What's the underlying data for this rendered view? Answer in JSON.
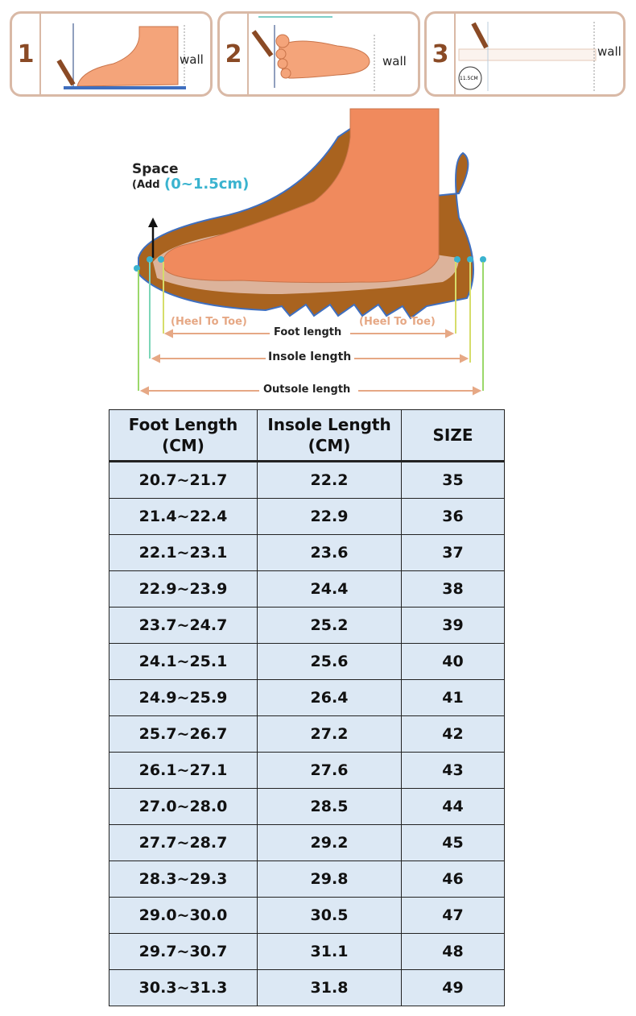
{
  "steps": [
    {
      "number": "1",
      "wall_label": "wall"
    },
    {
      "number": "2",
      "wall_label": "wall"
    },
    {
      "number": "3",
      "wall_label": "wall",
      "ruler_badge": "11.5CM"
    }
  ],
  "diagram": {
    "space_label": "Space",
    "add_label": "(Add",
    "add_value": "(0~1.5cm)",
    "heel_to_toe_left": "(Heel To Toe)",
    "heel_to_toe_right": "(Heel To Toe)",
    "foot_length": "Foot length",
    "insole_length": "Insole length",
    "outsole_length": "Outsole length",
    "accent_color": "#3ab3cf"
  },
  "table": {
    "headers": [
      {
        "line1": "Foot Length",
        "line2": "(CM)"
      },
      {
        "line1": "Insole Length",
        "line2": "(CM)"
      },
      {
        "line1": "SIZE",
        "line2": ""
      }
    ],
    "rows": [
      [
        "20.7~21.7",
        "22.2",
        "35"
      ],
      [
        "21.4~22.4",
        "22.9",
        "36"
      ],
      [
        "22.1~23.1",
        "23.6",
        "37"
      ],
      [
        "22.9~23.9",
        "24.4",
        "38"
      ],
      [
        "23.7~24.7",
        "25.2",
        "39"
      ],
      [
        "24.1~25.1",
        "25.6",
        "40"
      ],
      [
        "24.9~25.9",
        "26.4",
        "41"
      ],
      [
        "25.7~26.7",
        "27.2",
        "42"
      ],
      [
        "26.1~27.1",
        "27.6",
        "43"
      ],
      [
        "27.0~28.0",
        "28.5",
        "44"
      ],
      [
        "27.7~28.7",
        "29.2",
        "45"
      ],
      [
        "28.3~29.3",
        "29.8",
        "46"
      ],
      [
        "29.0~30.0",
        "30.5",
        "47"
      ],
      [
        "29.7~30.7",
        "31.1",
        "48"
      ],
      [
        "30.3~31.3",
        "31.8",
        "49"
      ]
    ],
    "cell_color": "#dce8f4"
  }
}
